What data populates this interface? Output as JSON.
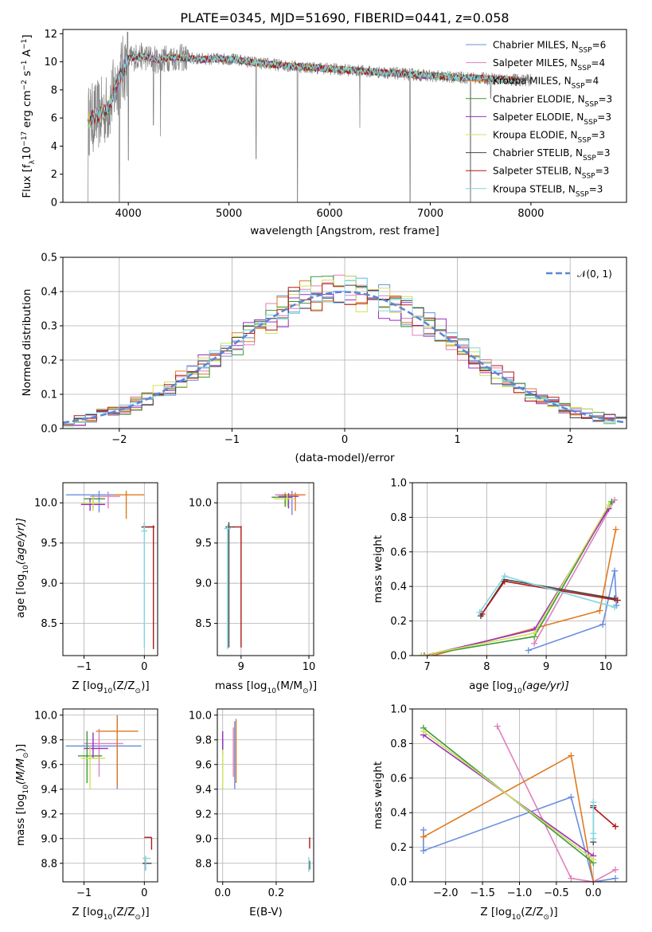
{
  "figure": {
    "title": "PLATE=0345, MJD=51690, FIBERID=0441, z=0.058"
  },
  "colors": {
    "Chabrier MILES": "#6a8fe0",
    "Salpeter MILES": "#e07fbd",
    "Kroupa MILES": "#e07a1f",
    "Chabrier ELODIE": "#3a9a3a",
    "Salpeter ELODIE": "#9a2fc2",
    "Kroupa ELODIE": "#d2e05a",
    "Chabrier STELIB": "#444444",
    "Salpeter STELIB": "#b01818",
    "Kroupa STELIB": "#7fd7e0",
    "normal": "#5b86d6",
    "data": "#808080"
  },
  "chart_data": [
    {
      "id": "spectrum",
      "type": "line",
      "title": "PLATE=0345, MJD=51690, FIBERID=0441, z=0.058",
      "xlabel": "wavelength [Angstrom, rest frame]",
      "ylabel": "Flux [f",
      "ylabel_rest": "10",
      "xlim": [
        3350,
        8950
      ],
      "ylim": [
        0,
        12.3
      ],
      "xticks": [
        4000,
        5000,
        6000,
        7000,
        8000
      ],
      "yticks": [
        0,
        2,
        4,
        6,
        8,
        10,
        12
      ],
      "grid": false,
      "legend_position": "top-right",
      "legend": [
        {
          "label": "Chabrier MILES, N",
          "nssp": "6",
          "series": "Chabrier MILES"
        },
        {
          "label": "Salpeter MILES, N",
          "nssp": "4",
          "series": "Salpeter MILES"
        },
        {
          "label": "Kroupa MILES, N",
          "nssp": "4",
          "series": "Kroupa MILES"
        },
        {
          "label": "Chabrier ELODIE, N",
          "nssp": "3",
          "series": "Chabrier ELODIE"
        },
        {
          "label": "Salpeter ELODIE, N",
          "nssp": "3",
          "series": "Salpeter ELODIE"
        },
        {
          "label": "Kroupa ELODIE, N",
          "nssp": "3",
          "series": "Kroupa ELODIE"
        },
        {
          "label": "Chabrier STELIB, N",
          "nssp": "3",
          "series": "Chabrier STELIB"
        },
        {
          "label": "Salpeter STELIB, N",
          "nssp": "3",
          "series": "Salpeter STELIB"
        },
        {
          "label": "Kroupa STELIB, N",
          "nssp": "3",
          "series": "Kroupa STELIB"
        }
      ],
      "continuum": {
        "x": [
          3600,
          3700,
          3800,
          3900,
          4000,
          4100,
          4200,
          4300,
          4400,
          4500,
          4700,
          5000,
          5300,
          5600,
          6000,
          6400,
          6800,
          7200,
          7600,
          7900
        ],
        "y": [
          5.8,
          6.2,
          6.7,
          8.7,
          10.2,
          10.4,
          10.3,
          10.1,
          10.3,
          10.3,
          10.2,
          10.2,
          9.9,
          9.7,
          9.5,
          9.3,
          9.1,
          8.9,
          8.8,
          8.7
        ]
      },
      "data_dips": [
        {
          "x": 3600,
          "y": 0
        },
        {
          "x": 3910,
          "y": 0
        },
        {
          "x": 4000,
          "y": 3.0
        },
        {
          "x": 4250,
          "y": 5.5
        },
        {
          "x": 4320,
          "y": 4.7
        },
        {
          "x": 5270,
          "y": 3.1
        },
        {
          "x": 5680,
          "y": 0
        },
        {
          "x": 6300,
          "y": 5.3
        },
        {
          "x": 6800,
          "y": 0
        },
        {
          "x": 7400,
          "y": 0
        },
        {
          "x": 7600,
          "y": 7.4
        }
      ]
    },
    {
      "id": "residuals",
      "type": "bar",
      "xlabel": "(data-model)/error",
      "ylabel": "Normed distribution",
      "xlim": [
        -2.5,
        2.5
      ],
      "ylim": [
        0,
        0.5
      ],
      "xticks": [
        -2,
        -1,
        0,
        1,
        2
      ],
      "yticks": [
        0.0,
        0.1,
        0.2,
        0.3,
        0.4,
        0.5
      ],
      "grid": true,
      "legend_position": "top-right",
      "legend_label": "(0, 1)",
      "normal_curve": {
        "mean": 0,
        "sigma": 1
      }
    },
    {
      "id": "age-vs-Z",
      "type": "scatter",
      "xlabel": "Z [log",
      "xlabel_rest": "(Z/Z",
      "ylabel": "age  [log",
      "ylabel_rest": "(age/yr)]",
      "xlim": [
        -1.35,
        0.22
      ],
      "ylim": [
        8.1,
        10.25
      ],
      "xticks": [
        -1,
        0
      ],
      "yticks": [
        8.5,
        9.0,
        9.5,
        10.0
      ],
      "grid": true
    },
    {
      "id": "age-vs-mass",
      "type": "scatter",
      "xlabel": "mass [log",
      "xlabel_rest": "(M/M",
      "xlim": [
        8.65,
        10.07
      ],
      "ylim": [
        8.1,
        10.25
      ],
      "xticks": [
        9,
        10
      ],
      "yticks": [
        8.5,
        9.0,
        9.5,
        10.0
      ],
      "grid": true
    },
    {
      "id": "weight-vs-age",
      "type": "line",
      "xlabel": "age  [log",
      "xlabel_rest": "(age/yr)]",
      "ylabel": "mass weight",
      "xlim": [
        6.75,
        10.35
      ],
      "ylim": [
        0,
        1.0
      ],
      "xticks": [
        7,
        8,
        9,
        10
      ],
      "yticks": [
        0.0,
        0.2,
        0.4,
        0.6,
        0.8,
        1.0
      ],
      "grid": true,
      "series": [
        {
          "model": "Chabrier MILES",
          "x": [
            8.7,
            9.95,
            10.15,
            10.18
          ],
          "y": [
            0.03,
            0.18,
            0.49,
            0.29
          ]
        },
        {
          "model": "Salpeter MILES",
          "x": [
            8.8,
            10.15
          ],
          "y": [
            0.07,
            0.9
          ]
        },
        {
          "model": "Kroupa MILES",
          "x": [
            7.1,
            9.9,
            10.17
          ],
          "y": [
            0.0,
            0.26,
            0.73
          ]
        },
        {
          "model": "Chabrier ELODIE",
          "x": [
            6.9,
            8.8,
            10.1
          ],
          "y": [
            0.0,
            0.11,
            0.89
          ]
        },
        {
          "model": "Salpeter ELODIE",
          "x": [
            6.95,
            8.8,
            10.05
          ],
          "y": [
            0.0,
            0.15,
            0.85
          ]
        },
        {
          "model": "Kroupa ELODIE",
          "x": [
            6.9,
            8.8,
            10.05
          ],
          "y": [
            0.0,
            0.13,
            0.87
          ]
        },
        {
          "model": "Chabrier STELIB",
          "x": [
            7.9,
            8.3,
            10.15
          ],
          "y": [
            0.23,
            0.44,
            0.33
          ]
        },
        {
          "model": "Salpeter STELIB",
          "x": [
            7.92,
            8.3,
            10.2
          ],
          "y": [
            0.24,
            0.43,
            0.32
          ]
        },
        {
          "model": "Kroupa STELIB",
          "x": [
            7.88,
            8.3,
            10.15
          ],
          "y": [
            0.25,
            0.46,
            0.28
          ]
        }
      ]
    },
    {
      "id": "mass-vs-Z",
      "type": "scatter",
      "xlabel": "Z [log",
      "xlabel_rest": "(Z/Z",
      "ylabel": "mass [log",
      "ylabel_rest": "(M/M",
      "xlim": [
        -1.35,
        0.22
      ],
      "ylim": [
        8.65,
        10.05
      ],
      "xticks": [
        -1,
        0
      ],
      "yticks": [
        8.8,
        9.0,
        9.2,
        9.4,
        9.6,
        9.8,
        10.0
      ],
      "grid": true
    },
    {
      "id": "mass-vs-ebv",
      "type": "scatter",
      "xlabel": "E(B-V)",
      "xlim": [
        -0.02,
        0.34
      ],
      "ylim": [
        8.65,
        10.05
      ],
      "xticks": [
        0.0,
        0.2
      ],
      "yticks": [
        8.8,
        9.0,
        9.2,
        9.4,
        9.6,
        9.8,
        10.0
      ],
      "grid": true
    },
    {
      "id": "weight-vs-Z",
      "type": "line",
      "xlabel": "Z [log",
      "xlabel_rest": "(Z/Z",
      "ylabel": "mass weight",
      "xlim": [
        -2.45,
        0.45
      ],
      "ylim": [
        0,
        1.0
      ],
      "xticks": [
        -2.0,
        -1.5,
        -1.0,
        -0.5,
        0.0
      ],
      "yticks": [
        0.0,
        0.2,
        0.4,
        0.6,
        0.8,
        1.0
      ],
      "grid": true,
      "series": [
        {
          "model": "Chabrier MILES",
          "x": [
            -2.3,
            -2.3,
            -0.3,
            0.0,
            0.3
          ],
          "y": [
            0.3,
            0.18,
            0.49,
            0.0,
            0.02
          ]
        },
        {
          "model": "Salpeter MILES",
          "x": [
            -1.3,
            -0.3,
            0.0,
            0.3
          ],
          "y": [
            0.9,
            0.02,
            0.0,
            0.07
          ]
        },
        {
          "model": "Kroupa MILES",
          "x": [
            -2.3,
            -0.3,
            0.0
          ],
          "y": [
            0.26,
            0.73,
            0.0
          ]
        },
        {
          "model": "Chabrier ELODIE",
          "x": [
            -2.3,
            0.0
          ],
          "y": [
            0.89,
            0.11
          ]
        },
        {
          "model": "Salpeter ELODIE",
          "x": [
            -2.3,
            0.0
          ],
          "y": [
            0.85,
            0.15
          ]
        },
        {
          "model": "Kroupa ELODIE",
          "x": [
            -2.3,
            0.0
          ],
          "y": [
            0.87,
            0.13
          ]
        },
        {
          "model": "Chabrier STELIB",
          "x": [
            0.0,
            0.0
          ],
          "y": [
            0.44,
            0.23
          ]
        },
        {
          "model": "Salpeter STELIB",
          "x": [
            0.0,
            0.3
          ],
          "y": [
            0.43,
            0.32
          ]
        },
        {
          "model": "Kroupa STELIB",
          "x": [
            0.0,
            0.0,
            0.0
          ],
          "y": [
            0.46,
            0.28,
            0.25
          ]
        }
      ]
    }
  ]
}
